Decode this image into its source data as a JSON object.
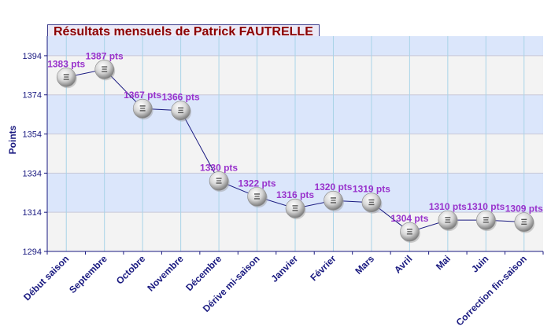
{
  "chart_data": {
    "type": "line",
    "title": "Résultats mensuels de Patrick FAUTRELLE",
    "xlabel": "",
    "ylabel": "Points",
    "ylim": [
      1294,
      1404
    ],
    "yticks": [
      1294,
      1314,
      1334,
      1354,
      1374,
      1394
    ],
    "categories": [
      "Début saison",
      "Septembre",
      "Octobre",
      "Novembre",
      "Décembre",
      "Dérive mi-saison",
      "Janvier",
      "Février",
      "Mars",
      "Avril",
      "Mai",
      "Juin",
      "Correction fin-saison"
    ],
    "values": [
      1383,
      1387,
      1367,
      1366,
      1330,
      1322,
      1316,
      1320,
      1319,
      1304,
      1310,
      1310,
      1309
    ],
    "point_labels": [
      "1383 pts",
      "1387 pts",
      "1367 pts",
      "1366 pts",
      "1330 pts",
      "1322 pts",
      "1316 pts",
      "1320 pts",
      "1319 pts",
      "1304 pts",
      "1310 pts",
      "1310 pts",
      "1309 pts"
    ],
    "grid": true,
    "legend": "none",
    "colors": {
      "line": "#1a1a80",
      "label": "#9933cc",
      "axis_text": "#1a1a80",
      "band_blue": "#dbe6fb",
      "band_gray": "#f3f3f3",
      "gridline": "#a9d4e8",
      "title_text": "#8b0000"
    }
  }
}
